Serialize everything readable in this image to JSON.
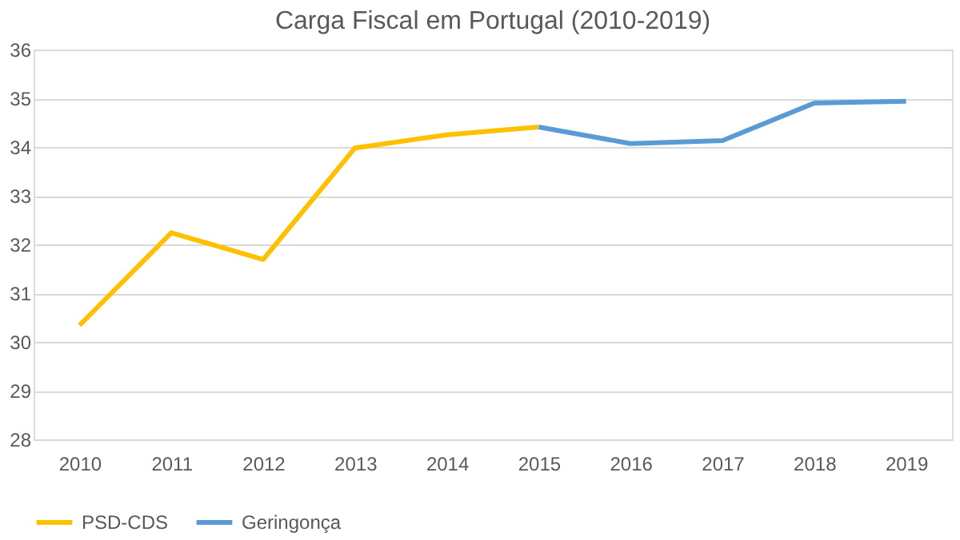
{
  "chart_data": {
    "type": "line",
    "title": "Carga Fiscal em Portugal (2010-2019)",
    "categories": [
      "2010",
      "2011",
      "2012",
      "2013",
      "2014",
      "2015",
      "2016",
      "2017",
      "2018",
      "2019"
    ],
    "series": [
      {
        "name": "PSD-CDS",
        "color": "#ffc000",
        "values": [
          30.34,
          32.24,
          31.69,
          33.98,
          34.25,
          34.41,
          null,
          null,
          null,
          null
        ]
      },
      {
        "name": "Geringonça",
        "color": "#5b9bd5",
        "values": [
          null,
          null,
          null,
          null,
          null,
          34.41,
          34.07,
          34.13,
          34.9,
          34.94
        ]
      }
    ],
    "ylim": [
      28,
      36
    ],
    "yticks": [
      28,
      29,
      30,
      31,
      32,
      33,
      34,
      35,
      36
    ],
    "grid": "y",
    "legend": "bottom",
    "marker": "none",
    "line_style": "solid"
  }
}
